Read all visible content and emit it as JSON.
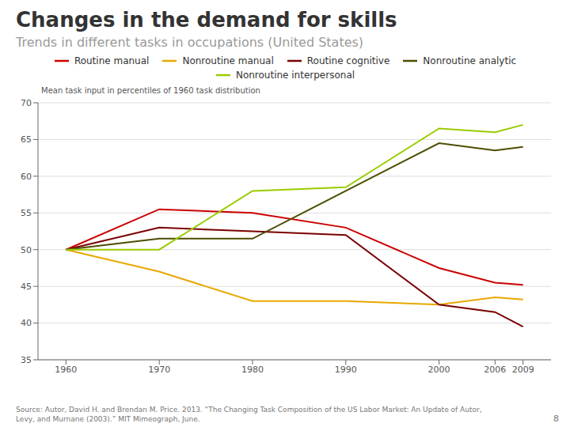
{
  "chart_data": {
    "type": "line",
    "title": "Changes in the demand for skills",
    "subtitle": "Trends in different tasks in occupations (United States)",
    "ylabel": "Mean task input in percentiles of 1960 task distribution",
    "source": "Source: Autor, David H. and Brendan M. Price. 2013. “The Changing Task Composition of the US Labor Market: An Update of Autor,\nLevy, and Murnane (2003).” MIT Mimeograph, June.",
    "page_number": "8",
    "x": [
      1960,
      1970,
      1980,
      1990,
      2000,
      2006,
      2009
    ],
    "series": [
      {
        "name": "Routine manual",
        "color": "#cc0000",
        "values": [
          50.0,
          55.5,
          55.0,
          53.0,
          47.5,
          45.5,
          45.2
        ]
      },
      {
        "name": "Nonroutine manual",
        "color": "#e8a800",
        "values": [
          50.0,
          47.0,
          43.0,
          43.0,
          42.5,
          43.5,
          43.2
        ]
      },
      {
        "name": "Routine cognitive",
        "color": "#7b0000",
        "values": [
          50.0,
          53.0,
          52.5,
          52.0,
          42.5,
          41.5,
          39.5
        ]
      },
      {
        "name": "Nonroutine analytic",
        "color": "#4d4d00",
        "values": [
          50.0,
          51.5,
          51.5,
          58.0,
          64.5,
          63.5,
          64.0
        ]
      },
      {
        "name": "Nonroutine interpersonal",
        "color": "#99cc00",
        "values": [
          50.0,
          50.0,
          58.0,
          58.5,
          66.5,
          66.0,
          67.0
        ]
      }
    ],
    "xlim": [
      1957,
      2012
    ],
    "xticks": [
      1960,
      1970,
      1980,
      1990,
      2000,
      2006,
      2009
    ],
    "ylim": [
      35,
      70
    ],
    "yticks": [
      35,
      40,
      45,
      50,
      55,
      60,
      65,
      70
    ],
    "grid": true,
    "legend": "top"
  }
}
